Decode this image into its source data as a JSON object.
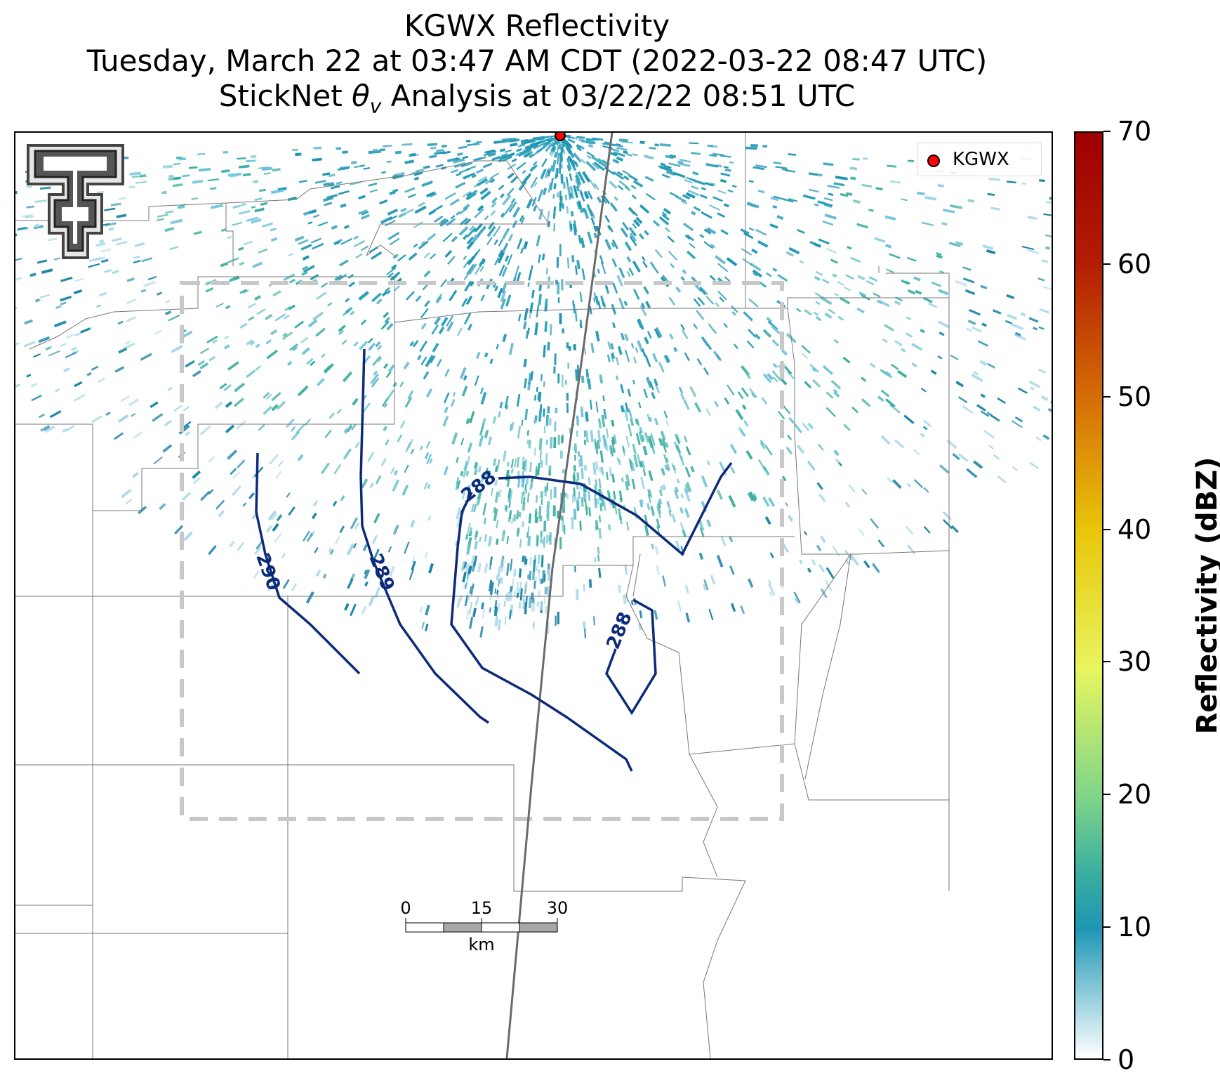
{
  "title": {
    "line1": "KGWX Reflectivity",
    "line2": "Tuesday, March 22 at 03:47 AM CDT (2022-03-22 08:47 UTC)",
    "line3": "StickNet θv Analysis at 03/22/22 08:51 UTC"
  },
  "legend": {
    "label": "KGWX",
    "marker_color": "#ff0000"
  },
  "colorbar": {
    "title": "Reflectivity (dBZ)",
    "ticks": [
      "0",
      "10",
      "20",
      "30",
      "40",
      "50",
      "60",
      "70"
    ],
    "range": [
      0,
      70
    ]
  },
  "contours": [
    {
      "value": "290"
    },
    {
      "value": "289"
    },
    {
      "value": "288"
    },
    {
      "value": "288"
    }
  ],
  "scale_bar": {
    "labels": [
      "0",
      "15",
      "30"
    ],
    "unit": "km"
  },
  "colors": {
    "contour": "#0c2a7a",
    "radar_echo": "#1e96b4",
    "analysis_box": "#c8c8c8"
  },
  "logo": {
    "icon": "texas-tech-double-t-logo"
  }
}
